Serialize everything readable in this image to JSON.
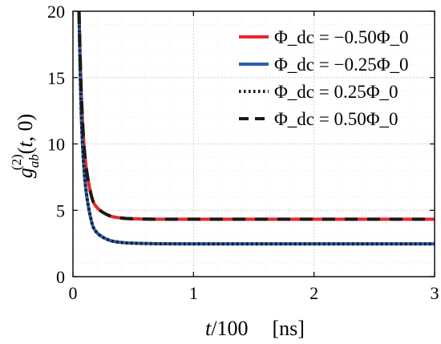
{
  "chart_data": {
    "type": "line",
    "xlabel": "t/100 [ns]",
    "ylabel": "g_ab^(2)(t,0)",
    "xlim": [
      0,
      3
    ],
    "ylim": [
      0,
      20
    ],
    "xticks": [
      "0",
      "1",
      "2",
      "3"
    ],
    "yticks": [
      "0",
      "5",
      "10",
      "15",
      "20"
    ],
    "grid": true,
    "legend_position": "top-right",
    "x": [
      0.05,
      0.07,
      0.1,
      0.15,
      0.2,
      0.3,
      0.4,
      0.5,
      0.7,
      1.0,
      1.5,
      2.0,
      2.5,
      3.0
    ],
    "series": [
      {
        "name": "Φ_dc = −0.50Φ_0",
        "color": "#e8262b",
        "style": "solid",
        "values": [
          20,
          13.6,
          9.0,
          6.2,
          5.2,
          4.6,
          4.42,
          4.36,
          4.33,
          4.33,
          4.33,
          4.33,
          4.33,
          4.33
        ]
      },
      {
        "name": "Φ_dc = −0.25Φ_0",
        "color": "#2a5db0",
        "style": "solid",
        "values": [
          20,
          12.0,
          7.2,
          4.3,
          3.3,
          2.75,
          2.58,
          2.52,
          2.48,
          2.47,
          2.47,
          2.47,
          2.47,
          2.47
        ]
      },
      {
        "name": "Φ_dc =   0.25Φ_0",
        "color": "#1a1a1a",
        "style": "dotted",
        "values": [
          20,
          12.0,
          7.2,
          4.3,
          3.3,
          2.75,
          2.58,
          2.52,
          2.48,
          2.47,
          2.47,
          2.47,
          2.47,
          2.47
        ]
      },
      {
        "name": "Φ_dc =   0.50Φ_0",
        "color": "#1a1a1a",
        "style": "dashed",
        "values": [
          20,
          13.6,
          9.0,
          6.2,
          5.2,
          4.6,
          4.42,
          4.36,
          4.33,
          4.33,
          4.33,
          4.33,
          4.33,
          4.33
        ]
      }
    ]
  }
}
